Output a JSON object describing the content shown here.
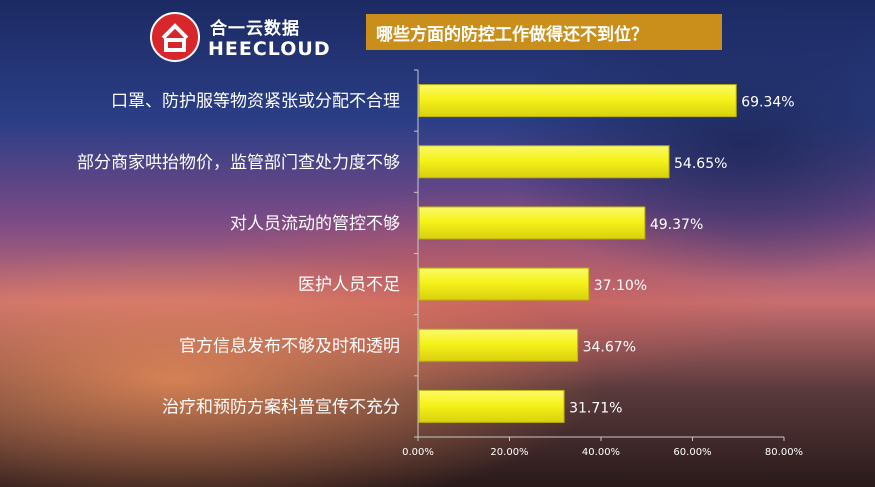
{
  "logo": {
    "cn_text": "合一云数据",
    "en_text": "HEECLOUD"
  },
  "title": "哪些方面的防控工作做得还不到位？",
  "colors": {
    "bar": "#f6f21a",
    "title_bg": "#ca8f1b",
    "logo_red": "#d8262a"
  },
  "chart_data": {
    "type": "bar",
    "orientation": "horizontal",
    "title": "哪些方面的防控工作做得还不到位？",
    "categories": [
      "口罩、防护服等物资紧张或分配不合理",
      "部分商家哄抬物价，监管部门查处力度不够",
      "对人员流动的管控不够",
      "医护人员不足",
      "官方信息发布不够及时和透明",
      "治疗和预防方案科普宣传不充分"
    ],
    "values": [
      69.34,
      54.65,
      49.37,
      37.1,
      34.67,
      31.71
    ],
    "value_labels": [
      "69.34%",
      "54.65%",
      "49.37%",
      "37.10%",
      "34.67%",
      "31.71%"
    ],
    "xlim": [
      0,
      80
    ],
    "x_ticks": [
      "0.00%",
      "20.00%",
      "40.00%",
      "60.00%",
      "80.00%"
    ],
    "x_tick_values": [
      0,
      20,
      40,
      60,
      80
    ],
    "grid": false,
    "legend": "none"
  }
}
